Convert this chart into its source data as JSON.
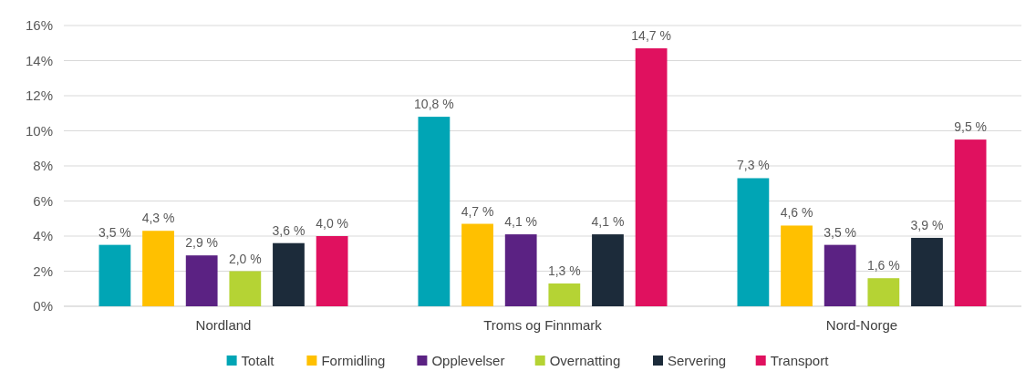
{
  "chart_data": {
    "type": "bar",
    "categories": [
      "Nordland",
      "Troms og Finnmark",
      "Nord-Norge"
    ],
    "ylim": [
      0,
      16
    ],
    "yticks": [
      {
        "value": 0,
        "label": "0%"
      },
      {
        "value": 2,
        "label": "2%"
      },
      {
        "value": 4,
        "label": "4%"
      },
      {
        "value": 6,
        "label": "6%"
      },
      {
        "value": 8,
        "label": "8%"
      },
      {
        "value": 10,
        "label": "10%"
      },
      {
        "value": 12,
        "label": "12%"
      },
      {
        "value": 14,
        "label": "14%"
      },
      {
        "value": 16,
        "label": "16%"
      }
    ],
    "grid": "y",
    "legend": "bottom",
    "series": [
      {
        "name": "Totalt",
        "color": "#00a5b5",
        "values": [
          3.5,
          10.8,
          7.3
        ],
        "value_labels": [
          "3,5 %",
          "10,8 %",
          "7,3 %"
        ]
      },
      {
        "name": "Formidling",
        "color": "#ffc000",
        "values": [
          4.3,
          4.7,
          4.6
        ],
        "value_labels": [
          "4,3 %",
          "4,7 %",
          "4,6 %"
        ]
      },
      {
        "name": "Opplevelser",
        "color": "#5b2283",
        "values": [
          2.9,
          4.1,
          3.5
        ],
        "value_labels": [
          "2,9 %",
          "4,1 %",
          "3,5 %"
        ]
      },
      {
        "name": "Overnatting",
        "color": "#b5d334",
        "values": [
          2.0,
          1.3,
          1.6
        ],
        "value_labels": [
          "2,0 %",
          "1,3 %",
          "1,6 %"
        ]
      },
      {
        "name": "Servering",
        "color": "#1c2b3a",
        "values": [
          3.6,
          4.1,
          3.9
        ],
        "value_labels": [
          "3,6 %",
          "4,1 %",
          "3,9 %"
        ]
      },
      {
        "name": "Transport",
        "color": "#e0115f",
        "values": [
          4.0,
          14.7,
          9.5
        ],
        "value_labels": [
          "4,0 %",
          "14,7 %",
          "9,5 %"
        ]
      }
    ]
  }
}
